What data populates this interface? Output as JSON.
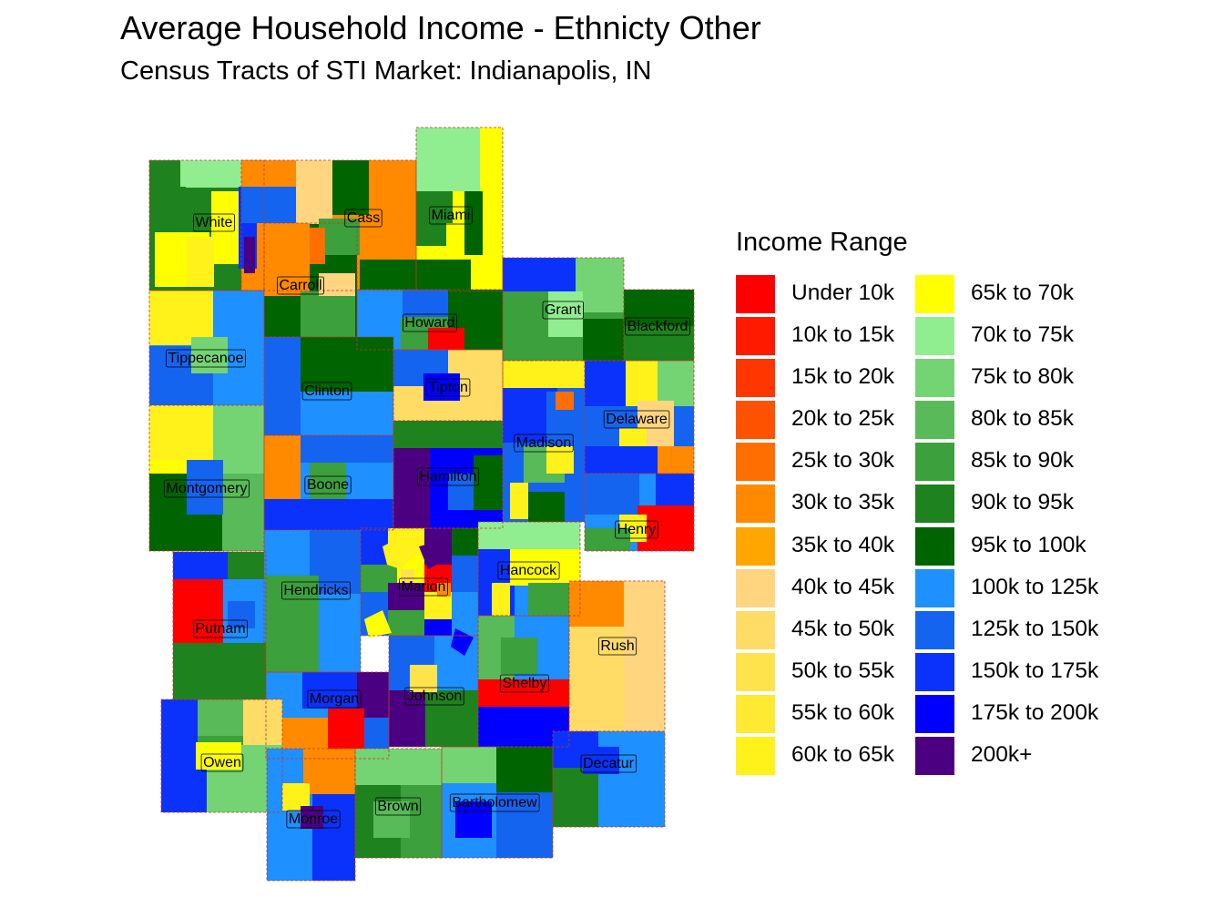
{
  "title": "Average Household Income - Ethnicty Other",
  "subtitle": "Census Tracts of STI Market: Indianapolis, IN",
  "legend": {
    "title": "Income Range",
    "items": [
      {
        "label": "Under 10k",
        "color": "#ff0000"
      },
      {
        "label": "10k to 15k",
        "color": "#ff1a00"
      },
      {
        "label": "15k to 20k",
        "color": "#ff3600"
      },
      {
        "label": "20k to 25k",
        "color": "#ff5200"
      },
      {
        "label": "25k to 30k",
        "color": "#ff6e00"
      },
      {
        "label": "30k to 35k",
        "color": "#ff8a00"
      },
      {
        "label": "35k to 40k",
        "color": "#ffa600"
      },
      {
        "label": "40k to 45k",
        "color": "#ffd580"
      },
      {
        "label": "45k to 50k",
        "color": "#ffdc66"
      },
      {
        "label": "50k to 55k",
        "color": "#ffe34d"
      },
      {
        "label": "55k to 60k",
        "color": "#ffea33"
      },
      {
        "label": "60k to 65k",
        "color": "#fff21a"
      },
      {
        "label": "65k to 70k",
        "color": "#ffff00"
      },
      {
        "label": "70k to 75k",
        "color": "#90ee90"
      },
      {
        "label": "75k to 80k",
        "color": "#74d474"
      },
      {
        "label": "80k to 85k",
        "color": "#58ba58"
      },
      {
        "label": "85k to 90k",
        "color": "#3ca03c"
      },
      {
        "label": "90k to 95k",
        "color": "#1e821e"
      },
      {
        "label": "95k to 100k",
        "color": "#006400"
      },
      {
        "label": "100k to 125k",
        "color": "#1e90ff"
      },
      {
        "label": "125k to 150k",
        "color": "#1464f0"
      },
      {
        "label": "150k to 175k",
        "color": "#0a32fa"
      },
      {
        "label": "175k to 200k",
        "color": "#0000ff"
      },
      {
        "label": "200k+",
        "color": "#4b0082"
      }
    ]
  },
  "counties": [
    {
      "name": "White"
    },
    {
      "name": "Cass"
    },
    {
      "name": "Miami"
    },
    {
      "name": "Carroll"
    },
    {
      "name": "Howard"
    },
    {
      "name": "Grant"
    },
    {
      "name": "Blackford"
    },
    {
      "name": "Tippecanoe"
    },
    {
      "name": "Clinton"
    },
    {
      "name": "Tipton"
    },
    {
      "name": "Delaware"
    },
    {
      "name": "Madison"
    },
    {
      "name": "Montgomery"
    },
    {
      "name": "Boone"
    },
    {
      "name": "Hamilton"
    },
    {
      "name": "Henry"
    },
    {
      "name": "Hancock"
    },
    {
      "name": "Hendricks"
    },
    {
      "name": "Marion"
    },
    {
      "name": "Putnam"
    },
    {
      "name": "Rush"
    },
    {
      "name": "Shelby"
    },
    {
      "name": "Morgan"
    },
    {
      "name": "Johnson"
    },
    {
      "name": "Owen"
    },
    {
      "name": "Decatur"
    },
    {
      "name": "Brown"
    },
    {
      "name": "Bartholomew"
    },
    {
      "name": "Monroe"
    }
  ]
}
